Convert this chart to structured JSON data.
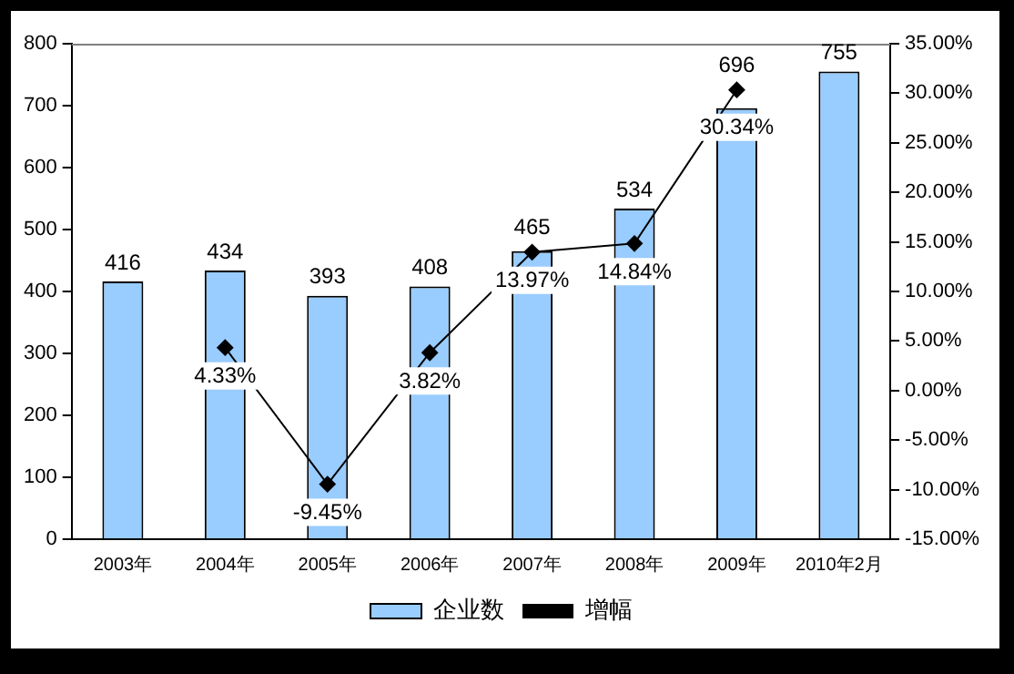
{
  "chart_data": {
    "type": "bar",
    "categories": [
      "2003年",
      "2004年",
      "2005年",
      "2006年",
      "2007年",
      "2008年",
      "2009年",
      "2010年2月"
    ],
    "series": [
      {
        "name": "企业数",
        "color": "#99ccff",
        "values": [
          416,
          434,
          393,
          408,
          465,
          534,
          696,
          755
        ],
        "value_labels": [
          "416",
          "434",
          "393",
          "408",
          "465",
          "534",
          "696",
          "755"
        ]
      },
      {
        "name": "增幅",
        "type": "line",
        "axis": "y2",
        "color": "#000000",
        "marker": "diamond",
        "values": [
          null,
          4.33,
          -9.45,
          3.82,
          13.97,
          14.84,
          30.34,
          null
        ],
        "value_labels": [
          null,
          "4.33%",
          "-9.45%",
          "3.82%",
          "13.97%",
          "14.84%",
          "30.34%",
          null
        ]
      }
    ],
    "ylim": [
      0,
      800
    ],
    "yticks": [
      0,
      100,
      200,
      300,
      400,
      500,
      600,
      700,
      800
    ],
    "y2lim": [
      -15,
      35
    ],
    "y2ticks": [
      {
        "value": -15,
        "label": "-15.00%"
      },
      {
        "value": -10,
        "label": "-10.00%"
      },
      {
        "value": -5,
        "label": "-5.00%"
      },
      {
        "value": 0,
        "label": "0.00%"
      },
      {
        "value": 5,
        "label": "5.00%"
      },
      {
        "value": 10,
        "label": "10.00%"
      },
      {
        "value": 15,
        "label": "15.00%"
      },
      {
        "value": 20,
        "label": "20.00%"
      },
      {
        "value": 25,
        "label": "25.00%"
      },
      {
        "value": 30,
        "label": "30.00%"
      },
      {
        "value": 35,
        "label": "35.00%"
      }
    ],
    "legend": "bottom",
    "grid": false
  }
}
